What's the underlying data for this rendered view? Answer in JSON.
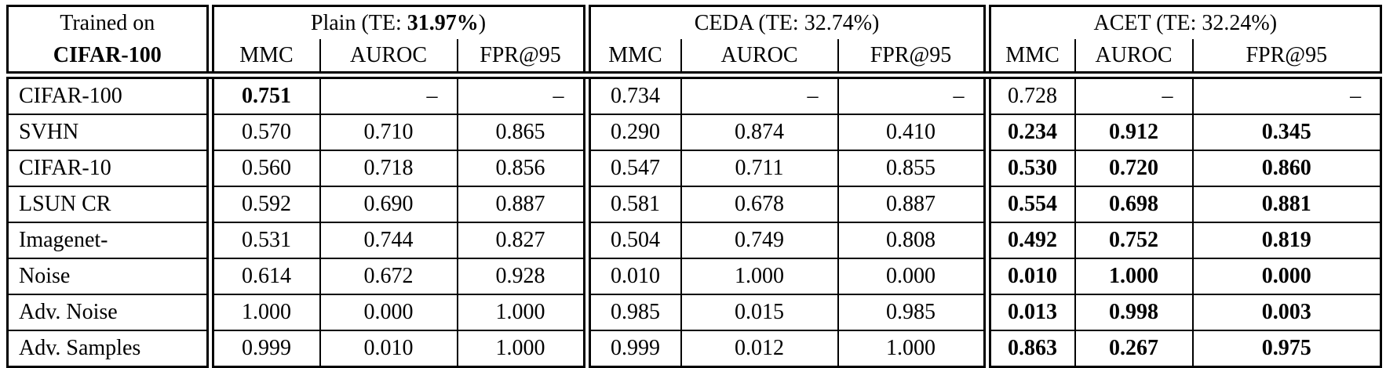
{
  "table": {
    "corner": {
      "line1": "Trained on",
      "line2": "CIFAR-100"
    },
    "groups": [
      {
        "name": "Plain",
        "pre": "Plain (TE: ",
        "te": "31.97%",
        "post": ")",
        "te_bold": true
      },
      {
        "name": "CEDA",
        "pre": "CEDA (TE: ",
        "te": "32.74%",
        "post": ")",
        "te_bold": false
      },
      {
        "name": "ACET",
        "pre": "ACET (TE: ",
        "te": "32.24%",
        "post": ")",
        "te_bold": false
      }
    ],
    "metric_headers": [
      "MMC",
      "AUROC",
      "FPR@95"
    ],
    "rows": [
      {
        "label": "CIFAR-100",
        "cells": [
          {
            "v": "0.751",
            "bold": true
          },
          {
            "v": "–",
            "dash": true
          },
          {
            "v": "–",
            "dash": true
          },
          {
            "v": "0.734"
          },
          {
            "v": "–",
            "dash": true
          },
          {
            "v": "–",
            "dash": true
          },
          {
            "v": "0.728"
          },
          {
            "v": "–",
            "dash": true
          },
          {
            "v": "–",
            "dash": true
          }
        ]
      },
      {
        "label": "SVHN",
        "cells": [
          {
            "v": "0.570"
          },
          {
            "v": "0.710"
          },
          {
            "v": "0.865"
          },
          {
            "v": "0.290"
          },
          {
            "v": "0.874"
          },
          {
            "v": "0.410"
          },
          {
            "v": "0.234",
            "bold": true
          },
          {
            "v": "0.912",
            "bold": true
          },
          {
            "v": "0.345",
            "bold": true
          }
        ]
      },
      {
        "label": "CIFAR-10",
        "cells": [
          {
            "v": "0.560"
          },
          {
            "v": "0.718"
          },
          {
            "v": "0.856"
          },
          {
            "v": "0.547"
          },
          {
            "v": "0.711"
          },
          {
            "v": "0.855"
          },
          {
            "v": "0.530",
            "bold": true
          },
          {
            "v": "0.720",
            "bold": true
          },
          {
            "v": "0.860",
            "bold": true
          }
        ]
      },
      {
        "label": "LSUN CR",
        "cells": [
          {
            "v": "0.592"
          },
          {
            "v": "0.690"
          },
          {
            "v": "0.887"
          },
          {
            "v": "0.581"
          },
          {
            "v": "0.678"
          },
          {
            "v": "0.887"
          },
          {
            "v": "0.554",
            "bold": true
          },
          {
            "v": "0.698",
            "bold": true
          },
          {
            "v": "0.881",
            "bold": true
          }
        ]
      },
      {
        "label": "Imagenet-",
        "cells": [
          {
            "v": "0.531"
          },
          {
            "v": "0.744"
          },
          {
            "v": "0.827"
          },
          {
            "v": "0.504"
          },
          {
            "v": "0.749"
          },
          {
            "v": "0.808"
          },
          {
            "v": "0.492",
            "bold": true
          },
          {
            "v": "0.752",
            "bold": true
          },
          {
            "v": "0.819",
            "bold": true
          }
        ]
      },
      {
        "label": "Noise",
        "cells": [
          {
            "v": "0.614"
          },
          {
            "v": "0.672"
          },
          {
            "v": "0.928"
          },
          {
            "v": "0.010"
          },
          {
            "v": "1.000"
          },
          {
            "v": "0.000"
          },
          {
            "v": "0.010",
            "bold": true
          },
          {
            "v": "1.000",
            "bold": true
          },
          {
            "v": "0.000",
            "bold": true
          }
        ]
      },
      {
        "label": "Adv. Noise",
        "cells": [
          {
            "v": "1.000"
          },
          {
            "v": "0.000"
          },
          {
            "v": "1.000"
          },
          {
            "v": "0.985"
          },
          {
            "v": "0.015"
          },
          {
            "v": "0.985"
          },
          {
            "v": "0.013",
            "bold": true
          },
          {
            "v": "0.998",
            "bold": true
          },
          {
            "v": "0.003",
            "bold": true
          }
        ]
      },
      {
        "label": "Adv. Samples",
        "cells": [
          {
            "v": "0.999"
          },
          {
            "v": "0.010"
          },
          {
            "v": "1.000"
          },
          {
            "v": "0.999"
          },
          {
            "v": "0.012"
          },
          {
            "v": "1.000"
          },
          {
            "v": "0.863",
            "bold": true
          },
          {
            "v": "0.267",
            "bold": true
          },
          {
            "v": "0.975",
            "bold": true
          }
        ]
      }
    ]
  }
}
